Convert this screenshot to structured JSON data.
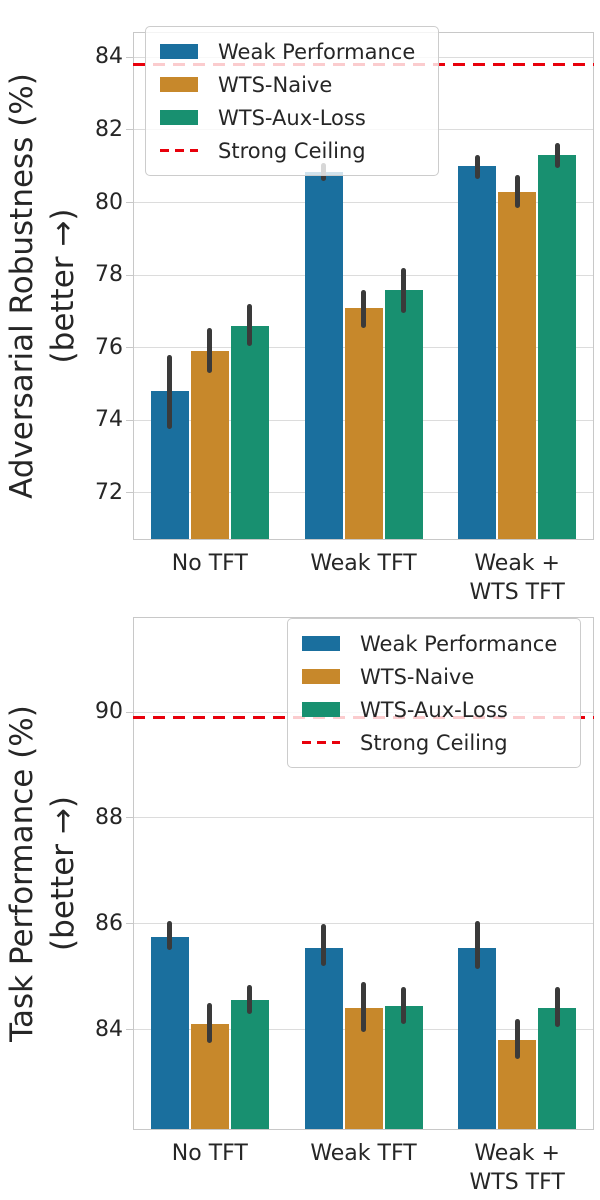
{
  "colors": {
    "weak_performance": "#1A6F9E",
    "wts_naive": "#C7882B",
    "wts_aux_loss": "#189070",
    "ceiling_red": "#E8000B",
    "error_bar": "#3A3A3A",
    "gridline": "#DCDCDC",
    "spine": "#C8C8C8",
    "text": "#262626"
  },
  "chart_data": [
    {
      "type": "bar",
      "title": "",
      "ylabel_line1": "Adversarial Robustness (%)",
      "ylabel_line2": "(better →)",
      "xlabel": "",
      "categories": [
        "No TFT",
        "Weak TFT",
        "Weak +\nWTS TFT"
      ],
      "series": [
        {
          "name": "Weak Performance",
          "color": "#1A6F9E",
          "values": [
            74.8,
            80.85,
            81.0
          ],
          "err_low": [
            73.75,
            80.6,
            80.65
          ],
          "err_high": [
            75.8,
            81.1,
            81.3
          ]
        },
        {
          "name": "WTS-Naive",
          "color": "#C7882B",
          "values": [
            75.9,
            77.1,
            80.3
          ],
          "err_low": [
            75.3,
            76.55,
            79.85
          ],
          "err_high": [
            76.55,
            77.6,
            80.75
          ]
        },
        {
          "name": "WTS-Aux-Loss",
          "color": "#189070",
          "values": [
            76.6,
            77.6,
            81.3
          ],
          "err_low": [
            76.05,
            76.95,
            80.95
          ],
          "err_high": [
            77.2,
            78.2,
            81.65
          ]
        }
      ],
      "ceiling": {
        "name": "Strong Ceiling",
        "value": 83.8,
        "color": "#E8000B"
      },
      "ylim": [
        70.7,
        84.7
      ],
      "yticks": [
        72,
        74,
        76,
        78,
        80,
        82,
        84
      ],
      "grid": true,
      "legend_position": "upper-left"
    },
    {
      "type": "bar",
      "title": "",
      "ylabel_line1": "Task Performance (%)",
      "ylabel_line2": "(better →)",
      "xlabel": "",
      "categories": [
        "No TFT",
        "Weak TFT",
        "Weak +\nWTS TFT"
      ],
      "series": [
        {
          "name": "Weak Performance",
          "color": "#1A6F9E",
          "values": [
            85.75,
            85.55,
            85.55
          ],
          "err_low": [
            85.5,
            85.2,
            85.15
          ],
          "err_high": [
            86.05,
            86.0,
            86.05
          ]
        },
        {
          "name": "WTS-Naive",
          "color": "#C7882B",
          "values": [
            84.1,
            84.4,
            83.8
          ],
          "err_low": [
            83.75,
            83.95,
            83.45
          ],
          "err_high": [
            84.5,
            84.9,
            84.2
          ]
        },
        {
          "name": "WTS-Aux-Loss",
          "color": "#189070",
          "values": [
            84.55,
            84.45,
            84.4
          ],
          "err_low": [
            84.3,
            84.1,
            84.05
          ],
          "err_high": [
            84.85,
            84.8,
            84.8
          ]
        }
      ],
      "ceiling": {
        "name": "Strong Ceiling",
        "value": 89.9,
        "color": "#E8000B"
      },
      "ylim": [
        82.1,
        91.8
      ],
      "yticks": [
        84,
        86,
        88,
        90
      ],
      "grid": true,
      "legend_position": "upper-right"
    }
  ]
}
